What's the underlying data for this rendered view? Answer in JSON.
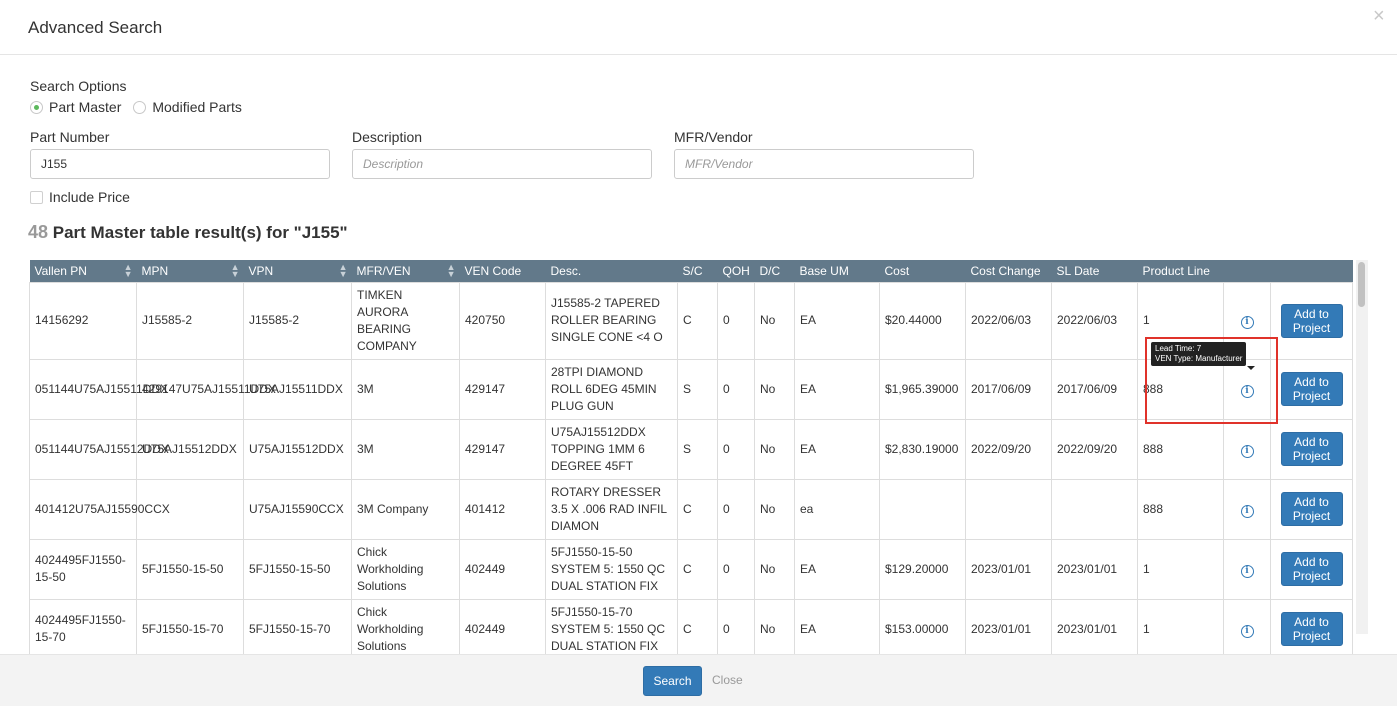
{
  "modal": {
    "title": "Advanced Search",
    "close_glyph": "×"
  },
  "search_options": {
    "label": "Search Options",
    "options": [
      {
        "label": "Part Master",
        "checked": true
      },
      {
        "label": "Modified Parts",
        "checked": false
      }
    ]
  },
  "fields": {
    "part_number": {
      "label": "Part Number",
      "value": "J155",
      "placeholder": ""
    },
    "description": {
      "label": "Description",
      "value": "",
      "placeholder": "Description"
    },
    "mfr_vendor": {
      "label": "MFR/Vendor",
      "value": "",
      "placeholder": "MFR/Vendor"
    }
  },
  "include_price": {
    "label": "Include Price",
    "checked": false
  },
  "results": {
    "count": "48",
    "text": "Part Master table result(s) for \"J155\""
  },
  "table": {
    "columns": [
      "Vallen PN",
      "MPN",
      "VPN",
      "MFR/VEN",
      "VEN Code",
      "Desc.",
      "S/C",
      "QOH",
      "D/C",
      "Base UM",
      "Cost",
      "Cost Change",
      "SL Date",
      "Product Line",
      "",
      ""
    ],
    "rows": [
      {
        "vallen_pn": "14156292",
        "mpn": "J15585-2",
        "vpn": "J15585-2",
        "mfr_ven": "TIMKEN AURORA BEARING COMPANY",
        "ven_code": "420750",
        "desc": "J15585-2 TAPERED ROLLER BEARING SINGLE CONE <4 O",
        "sc": "C",
        "qoh": "0",
        "dc": "No",
        "base_um": "EA",
        "cost": "$20.44000",
        "cost_change": "2022/06/03",
        "sl_date": "2022/06/03",
        "product_line": "1",
        "add_label": "Add to Project"
      },
      {
        "vallen_pn": "051144U75AJ15511DDX",
        "mpn": "429147U75AJ15511DDX",
        "vpn": "U75AJ15511DDX",
        "mfr_ven": "3M",
        "ven_code": "429147",
        "desc": "28TPI DIAMOND ROLL 6DEG 45MIN PLUG GUN",
        "sc": "S",
        "qoh": "0",
        "dc": "No",
        "base_um": "EA",
        "cost": "$1,965.39000",
        "cost_change": "2017/06/09",
        "sl_date": "2017/06/09",
        "product_line": "888",
        "add_label": "Add to Project"
      },
      {
        "vallen_pn": "051144U75AJ15512DDX",
        "mpn": "U75AJ15512DDX",
        "vpn": "U75AJ15512DDX",
        "mfr_ven": "3M",
        "ven_code": "429147",
        "desc": "U75AJ15512DDX TOPPING 1MM 6 DEGREE 45FT",
        "sc": "S",
        "qoh": "0",
        "dc": "No",
        "base_um": "EA",
        "cost": "$2,830.19000",
        "cost_change": "2022/09/20",
        "sl_date": "2022/09/20",
        "product_line": "888",
        "add_label": "Add to Project"
      },
      {
        "vallen_pn": "401412U75AJ15590CCX",
        "mpn": "",
        "vpn": "U75AJ15590CCX",
        "mfr_ven": "3M Company",
        "ven_code": "401412",
        "desc": "ROTARY DRESSER 3.5 X .006 RAD INFIL DIAMON",
        "sc": "C",
        "qoh": "0",
        "dc": "No",
        "base_um": "ea",
        "cost": "",
        "cost_change": "",
        "sl_date": "",
        "product_line": "888",
        "add_label": "Add to Project"
      },
      {
        "vallen_pn": "4024495FJ1550-15-50",
        "mpn": "5FJ1550-15-50",
        "vpn": "5FJ1550-15-50",
        "mfr_ven": "Chick Workholding Solutions",
        "ven_code": "402449",
        "desc": "5FJ1550-15-50 SYSTEM 5: 1550 QC DUAL STATION FIX",
        "sc": "C",
        "qoh": "0",
        "dc": "No",
        "base_um": "EA",
        "cost": "$129.20000",
        "cost_change": "2023/01/01",
        "sl_date": "2023/01/01",
        "product_line": "1",
        "add_label": "Add to Project"
      },
      {
        "vallen_pn": "4024495FJ1550-15-70",
        "mpn": "5FJ1550-15-70",
        "vpn": "5FJ1550-15-70",
        "mfr_ven": "Chick Workholding Solutions",
        "ven_code": "402449",
        "desc": "5FJ1550-15-70 SYSTEM 5: 1550 QC DUAL STATION FIX",
        "sc": "C",
        "qoh": "0",
        "dc": "No",
        "base_um": "EA",
        "cost": "$153.00000",
        "cost_change": "2023/01/01",
        "sl_date": "2023/01/01",
        "product_line": "1",
        "add_label": "Add to Project"
      }
    ]
  },
  "tooltip": {
    "line1": "Lead Time: 7",
    "line2": "VEN Type: Manufacturer"
  },
  "footer": {
    "search_label": "Search",
    "close_label": "Close"
  },
  "colors": {
    "header_bg": "#62798a",
    "primary": "#337ab7",
    "highlight": "#e0322a",
    "radio_checked": "#5cb85c"
  }
}
